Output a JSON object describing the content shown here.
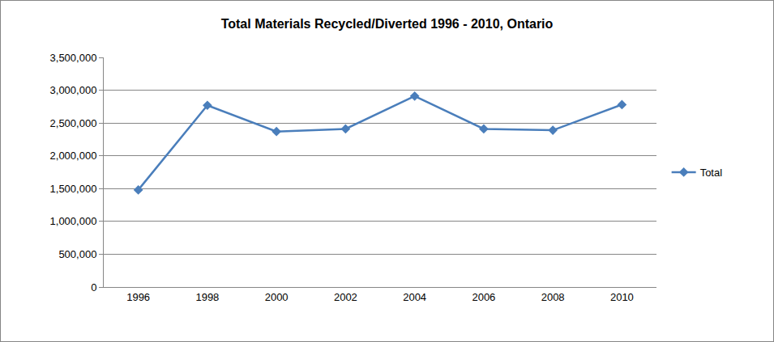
{
  "chart_data": {
    "type": "line",
    "title": "Total Materials Recycled/Diverted 1996 - 2010, Ontario",
    "categories": [
      "1996",
      "1998",
      "2000",
      "2002",
      "2004",
      "2006",
      "2008",
      "2010"
    ],
    "series": [
      {
        "name": "Total",
        "color": "#4a7ebb",
        "marker": "diamond",
        "line_style": "solid",
        "values": [
          1480000,
          2770000,
          2370000,
          2410000,
          2910000,
          2410000,
          2390000,
          2780000
        ]
      }
    ],
    "ylim": [
      0,
      3500000
    ],
    "yticks": [
      0,
      {
        "value": 500000,
        "label": "500,000"
      },
      {
        "value": 1000000,
        "label": "1,000,000"
      },
      {
        "value": 1500000,
        "label": "1,500,000"
      },
      {
        "value": 2000000,
        "label": "2,000,000"
      },
      {
        "value": 2500000,
        "label": "2,500,000"
      },
      {
        "value": 3000000,
        "label": "3,000,000"
      },
      {
        "value": 3500000,
        "label": "3,500,000"
      }
    ],
    "grid": true,
    "legend": "right"
  }
}
